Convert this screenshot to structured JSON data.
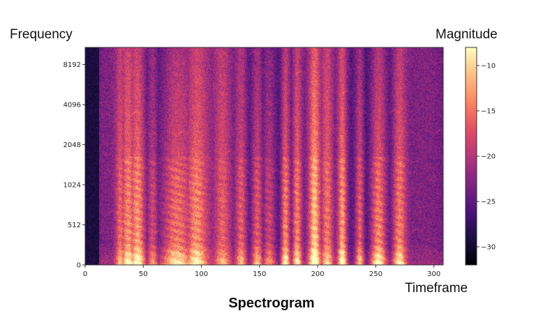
{
  "labels": {
    "y_axis": "Frequency",
    "colorbar": "Magnitude",
    "x_axis": "Timeframe",
    "caption": "Spectrogram"
  },
  "chart_data": {
    "type": "heatmap",
    "title": "Spectrogram",
    "xlabel": "Timeframe",
    "ylabel": "Frequency",
    "colorbar_label": "Magnitude",
    "xlim": [
      0,
      308
    ],
    "x_ticks": [
      0,
      50,
      100,
      150,
      200,
      250,
      300
    ],
    "y_ticks": [
      "0",
      "512",
      "1024",
      "2048",
      "4096",
      "8192"
    ],
    "y_scale": "symlog",
    "y_max": 11025,
    "color_range": [
      -32,
      -8
    ],
    "colorbar_ticks": [
      -10,
      -15,
      -20,
      -25,
      -30
    ],
    "colormap": "magma",
    "silence_end_frame": 12,
    "vertical_bands": [
      {
        "center": 30,
        "width": 4,
        "strength": 0.55
      },
      {
        "center": 37,
        "width": 6,
        "strength": 0.75
      },
      {
        "center": 45,
        "width": 7,
        "strength": 0.85
      },
      {
        "center": 58,
        "width": 5,
        "strength": 0.6
      },
      {
        "center": 78,
        "width": 14,
        "strength": 0.8
      },
      {
        "center": 95,
        "width": 10,
        "strength": 0.75
      },
      {
        "center": 118,
        "width": 7,
        "strength": 0.5
      },
      {
        "center": 134,
        "width": 5,
        "strength": 0.6
      },
      {
        "center": 148,
        "width": 5,
        "strength": 0.7
      },
      {
        "center": 158,
        "width": 6,
        "strength": 0.6
      },
      {
        "center": 172,
        "width": 4,
        "strength": 0.85
      },
      {
        "center": 182,
        "width": 4,
        "strength": 0.75
      },
      {
        "center": 197,
        "width": 5,
        "strength": 0.9
      },
      {
        "center": 208,
        "width": 5,
        "strength": 0.6
      },
      {
        "center": 221,
        "width": 4,
        "strength": 0.85
      },
      {
        "center": 236,
        "width": 4,
        "strength": 0.7
      },
      {
        "center": 252,
        "width": 7,
        "strength": 0.9
      },
      {
        "center": 270,
        "width": 6,
        "strength": 0.75
      }
    ]
  }
}
